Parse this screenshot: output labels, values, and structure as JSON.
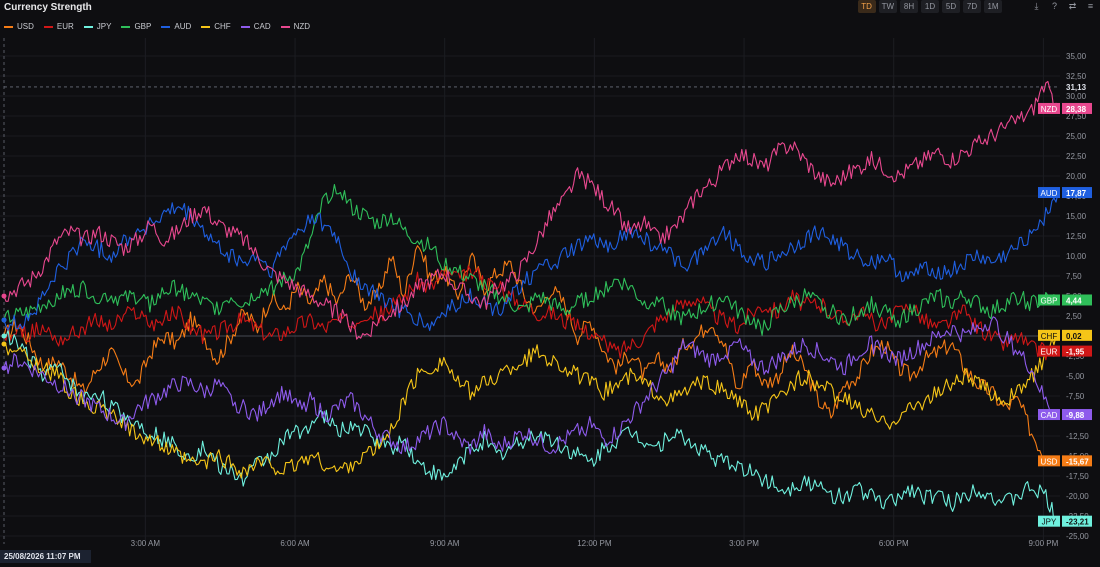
{
  "app": {
    "title": "Currency Strength"
  },
  "toolbar": {
    "timeframes": [
      "TD",
      "TW",
      "8H",
      "1D",
      "5D",
      "7D",
      "1M"
    ],
    "active": "TD",
    "icons": [
      "download-icon",
      "help-icon",
      "settings-icon",
      "menu-icon"
    ]
  },
  "footer": {
    "date_label": "25/08/2026 11:07 PM"
  },
  "colors": {
    "background": "#0e0e11",
    "USD": "#f57c16",
    "EUR": "#d01717",
    "JPY": "#6ff0de",
    "GBP": "#2fbf5a",
    "AUD": "#1f5fe0",
    "CHF": "#f5c518",
    "CAD": "#8e5bec",
    "NZD": "#e8488f"
  },
  "chart_data": {
    "type": "line",
    "x_ticks": [
      "3:00 AM",
      "6:00 AM",
      "9:00 AM",
      "12:00 PM",
      "3:00 PM",
      "6:00 PM",
      "9:00 PM"
    ],
    "x_range": [
      "12:10 AM",
      "9:20 PM"
    ],
    "y_ticks": [
      "35,00",
      "32,50",
      "30,00",
      "27,50",
      "25,00",
      "22,50",
      "20,00",
      "17,50",
      "15,00",
      "12,50",
      "10,00",
      "7,50",
      "5,00",
      "2,50",
      "0,00",
      "-2,50",
      "-5,00",
      "-7,50",
      "-10,00",
      "-12,50",
      "-15,00",
      "-17,50",
      "-20,00",
      "-22,50",
      "-25,00"
    ],
    "ylim": [
      -26,
      36.5
    ],
    "crosshair": {
      "value": 31.13,
      "label": "31,13"
    },
    "legend_position": "top-left",
    "series": [
      {
        "name": "USD",
        "last_label": "-15,67",
        "values": [
          0,
          1.5,
          -1,
          -4,
          -3,
          -5,
          -7,
          -4,
          -2,
          -5,
          -6,
          -2,
          0,
          -1,
          2,
          0,
          -3,
          0,
          3,
          1,
          5,
          3,
          6,
          4,
          7,
          4,
          8,
          4,
          5,
          10,
          5,
          12,
          7,
          8,
          5,
          10,
          6,
          8,
          9,
          5,
          3,
          6,
          4,
          0,
          2,
          -2,
          -4,
          -2,
          -5,
          -3,
          -4,
          -1,
          0,
          2,
          -1,
          -7,
          -3,
          -6,
          -5,
          -2,
          -4,
          -8,
          -10,
          -6,
          -5,
          -2,
          -1,
          -4,
          -5,
          -3,
          -2,
          -1,
          -4,
          -6,
          -7,
          -9,
          -8,
          -12,
          -15,
          -15.67
        ]
      },
      {
        "name": "EUR",
        "last_label": "-1,95",
        "values": [
          0,
          0.5,
          0.3,
          1,
          -0.5,
          0,
          1,
          2,
          1,
          2.5,
          3,
          1.5,
          2,
          3,
          1,
          0,
          0.5,
          1.5,
          2,
          1,
          0,
          0.5,
          1.5,
          2,
          1,
          2,
          1.5,
          3,
          2.5,
          3.5,
          5,
          7,
          6,
          8,
          7,
          8,
          7,
          6,
          5,
          4,
          3,
          3,
          2,
          1,
          0.5,
          -1,
          -2,
          -1,
          0,
          2,
          3,
          4,
          5,
          3,
          2,
          1,
          3,
          4,
          3,
          5,
          4,
          4,
          3,
          2,
          3,
          2,
          1,
          3,
          4,
          2,
          1,
          2,
          3,
          1,
          0,
          -1,
          0,
          -1.5,
          -2,
          -1.95
        ]
      },
      {
        "name": "JPY",
        "last_label": "-23,21",
        "values": [
          0,
          -1,
          -3,
          -5,
          -4,
          -6,
          -8,
          -7,
          -9,
          -10,
          -11,
          -12,
          -13,
          -14,
          -15,
          -14,
          -16,
          -17,
          -18,
          -16,
          -15,
          -13,
          -12,
          -11,
          -10,
          -12,
          -11,
          -12,
          -13,
          -14,
          -13,
          -16,
          -17,
          -18,
          -16,
          -14,
          -13,
          -15,
          -14,
          -13,
          -12,
          -13,
          -14,
          -15,
          -16,
          -14,
          -13,
          -12,
          -13,
          -14,
          -12,
          -13,
          -14,
          -15,
          -16,
          -16,
          -17,
          -18,
          -19,
          -19,
          -18,
          -19,
          -20,
          -20,
          -19,
          -20,
          -21,
          -20,
          -19,
          -20,
          -20,
          -21,
          -20,
          -19,
          -20,
          -21,
          -20,
          -19,
          -20,
          -23.21
        ]
      },
      {
        "name": "GBP",
        "last_label": "4,44",
        "values": [
          2,
          2.5,
          3,
          4,
          5,
          5.5,
          6,
          5,
          5,
          4.5,
          5,
          4,
          5.5,
          6,
          5,
          4,
          3.5,
          5,
          4,
          5.5,
          6,
          7,
          8,
          12,
          17,
          19,
          16,
          15,
          14,
          15,
          13,
          12,
          11,
          9,
          8,
          7,
          6,
          5,
          4,
          3,
          5,
          4,
          3,
          4,
          5,
          6,
          7,
          6,
          4,
          5,
          3,
          2,
          3,
          4,
          5,
          3,
          2,
          1,
          3,
          4,
          5,
          4,
          3,
          2,
          3,
          4,
          3,
          2,
          3,
          4,
          5,
          4,
          5,
          4,
          3,
          4,
          5,
          4,
          4.5,
          4.44
        ]
      },
      {
        "name": "AUD",
        "last_label": "17,87",
        "values": [
          2,
          1.5,
          2.5,
          5,
          8,
          10,
          12,
          11,
          10,
          12,
          13,
          14,
          15,
          16,
          15,
          13,
          11,
          10,
          9,
          10,
          8,
          11,
          13,
          15,
          14,
          12,
          8,
          6,
          5,
          4,
          3,
          2,
          1,
          3,
          4,
          5,
          4,
          3,
          5,
          7,
          8,
          9,
          10,
          11,
          12,
          11,
          12,
          13,
          12,
          11,
          10,
          9,
          10,
          12,
          13,
          11,
          10,
          9,
          10,
          11,
          12,
          13,
          12,
          11,
          10,
          9,
          10,
          8,
          7,
          9,
          8,
          8,
          9,
          10,
          9,
          10,
          11,
          13,
          15,
          17.87
        ]
      },
      {
        "name": "CHF",
        "last_label": "0,02",
        "values": [
          -1,
          -2,
          -3,
          -4,
          -5,
          -7,
          -8,
          -9,
          -10,
          -11,
          -12,
          -13,
          -14,
          -15,
          -16,
          -16,
          -15,
          -16,
          -17,
          -16,
          -16,
          -17,
          -16,
          -15,
          -16,
          -17,
          -16,
          -15,
          -14,
          -12,
          -8,
          -5,
          -4,
          -3,
          -6,
          -7,
          -6,
          -5,
          -4,
          -3,
          -2,
          -3,
          -4,
          -5,
          -6,
          -7,
          -6,
          -5,
          -6,
          -7,
          -8,
          -7,
          -6,
          -6,
          -7,
          -8,
          -10,
          -9,
          -8,
          -6,
          -5,
          -6,
          -7,
          -8,
          -9,
          -10,
          -11,
          -10,
          -9,
          -8,
          -7,
          -6,
          -5,
          -6,
          -7,
          -8,
          -7,
          -5,
          -3,
          0.02
        ]
      },
      {
        "name": "CAD",
        "last_label": "-9,88",
        "values": [
          -4,
          -3,
          -4,
          -5,
          -6,
          -7,
          -8,
          -9,
          -10,
          -11,
          -9,
          -8,
          -7,
          -6,
          -6,
          -7,
          -6,
          -8,
          -9,
          -10,
          -8,
          -7,
          -9,
          -8,
          -10,
          -9,
          -8,
          -10,
          -12,
          -13,
          -14,
          -13,
          -12,
          -11,
          -13,
          -14,
          -12,
          -14,
          -13,
          -12,
          -13,
          -14,
          -13,
          -12,
          -11,
          -13,
          -12,
          -10,
          -8,
          -6,
          -4,
          -1,
          -2,
          -3,
          -2,
          -1,
          -3,
          -4,
          -3,
          -2,
          -1,
          -2,
          -3,
          -4,
          -2,
          -1,
          -2,
          -3,
          -2,
          -1,
          0,
          1,
          0,
          1,
          2,
          0,
          -2,
          -4,
          -8,
          -9.88
        ]
      },
      {
        "name": "NZD",
        "last_label": "28,38",
        "values": [
          5,
          6,
          7,
          9,
          12,
          13,
          12,
          13,
          12,
          11,
          12,
          14,
          12,
          13,
          15,
          16,
          14,
          13,
          12,
          10,
          8,
          7,
          6,
          5,
          4,
          3,
          1,
          0,
          2,
          3,
          4,
          6,
          7,
          8,
          6,
          5,
          4,
          6,
          7,
          9,
          12,
          15,
          17,
          20,
          19,
          17,
          15,
          13,
          14,
          12,
          13,
          15,
          18,
          19,
          21,
          23,
          22,
          21,
          23,
          24,
          22,
          20,
          19,
          20,
          21,
          22,
          21,
          20,
          21,
          22,
          23,
          22,
          23,
          24,
          25,
          26,
          27,
          28,
          31.5,
          28.38
        ]
      }
    ]
  }
}
